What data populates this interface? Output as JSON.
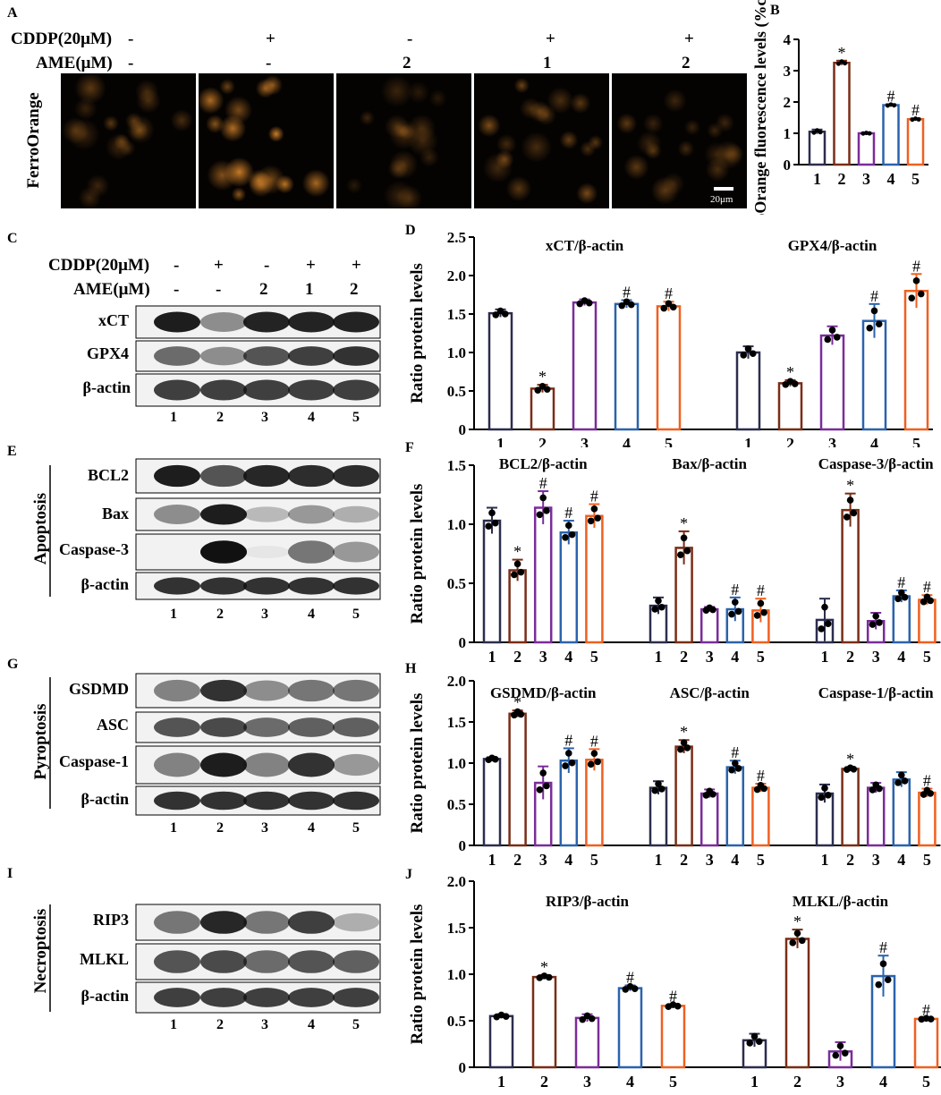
{
  "colors": {
    "lane1": "#2b2d4e",
    "lane2": "#7a2d16",
    "lane3": "#7b2c9a",
    "lane4": "#2a63ad",
    "lane5": "#ef6020",
    "dot": "#000000",
    "cell": "#e08a2c"
  },
  "panelA": {
    "label": "A",
    "cddp_label": "CDDP(20μM)",
    "ame_label": "AME(μM)",
    "cddp": [
      "-",
      "+",
      "-",
      "+",
      "+"
    ],
    "ame": [
      "-",
      "-",
      "2",
      "1",
      "2"
    ],
    "row_label": "FerroOrange",
    "scalebar": "20μm"
  },
  "panelC": {
    "label": "C",
    "cddp_label": "CDDP(20μM)",
    "ame_label": "AME(μM)",
    "cddp": [
      "-",
      "+",
      "-",
      "+",
      "+"
    ],
    "ame": [
      "-",
      "-",
      "2",
      "1",
      "2"
    ],
    "blots": [
      "xCT",
      "GPX4",
      "β-actin"
    ],
    "lanes": [
      "1",
      "2",
      "3",
      "4",
      "5"
    ]
  },
  "panelE": {
    "label": "E",
    "group": "Apoptosis",
    "blots": [
      "BCL2",
      "Bax",
      "Caspase-3",
      "β-actin"
    ],
    "lanes": [
      "1",
      "2",
      "3",
      "4",
      "5"
    ]
  },
  "panelG": {
    "label": "G",
    "group": "Pyroptosis",
    "blots": [
      "GSDMD",
      "ASC",
      "Caspase-1",
      "β-actin"
    ],
    "lanes": [
      "1",
      "2",
      "3",
      "4",
      "5"
    ]
  },
  "panelI": {
    "label": "I",
    "group": "Necroptosis",
    "blots": [
      "RIP3",
      "MLKL",
      "β-actin"
    ],
    "lanes": [
      "1",
      "2",
      "3",
      "4",
      "5"
    ]
  },
  "chart_data": [
    {
      "id": "B",
      "type": "bar",
      "panel_label": "B",
      "ylabel": "FerroOrange fluorescence levels (%control)",
      "ylim": [
        0,
        4
      ],
      "yticks": [
        0,
        1,
        2,
        3,
        4
      ],
      "categories": [
        "1",
        "2",
        "3",
        "4",
        "5"
      ],
      "groups": [
        {
          "title": "",
          "values": [
            1.05,
            3.25,
            1.0,
            1.9,
            1.45
          ],
          "errors": [
            0.07,
            0.07,
            0.02,
            0.03,
            0.03
          ],
          "marks": [
            "",
            "*",
            "",
            "#",
            "#"
          ]
        }
      ]
    },
    {
      "id": "D",
      "type": "bar",
      "panel_label": "D",
      "ylabel": "Ratio protein levels",
      "ylim": [
        0,
        2.5
      ],
      "yticks": [
        0,
        0.5,
        1.0,
        1.5,
        2.0,
        2.5
      ],
      "categories": [
        "1",
        "2",
        "3",
        "4",
        "5"
      ],
      "groups": [
        {
          "title": "xCT/β-actin",
          "values": [
            1.51,
            0.53,
            1.65,
            1.63,
            1.6
          ],
          "errors": [
            0.05,
            0.05,
            0.04,
            0.05,
            0.06
          ],
          "marks": [
            "",
            "*",
            "",
            "#",
            "#"
          ]
        },
        {
          "title": "GPX4/β-actin",
          "values": [
            1.0,
            0.6,
            1.22,
            1.41,
            1.8
          ],
          "errors": [
            0.08,
            0.04,
            0.12,
            0.22,
            0.22
          ],
          "marks": [
            "",
            "*",
            "",
            "#",
            "#"
          ]
        }
      ]
    },
    {
      "id": "F",
      "type": "bar",
      "panel_label": "F",
      "ylabel": "Ratio protein levels",
      "ylim": [
        0,
        1.5
      ],
      "yticks": [
        0,
        0.5,
        1.0,
        1.5
      ],
      "categories": [
        "1",
        "2",
        "3",
        "4",
        "5"
      ],
      "groups": [
        {
          "title": "BCL2/β-actin",
          "values": [
            1.03,
            0.61,
            1.14,
            0.93,
            1.07
          ],
          "errors": [
            0.11,
            0.09,
            0.14,
            0.1,
            0.1
          ],
          "marks": [
            "",
            "*",
            "#",
            "#",
            "#"
          ]
        },
        {
          "title": "Bax/β-actin",
          "values": [
            0.31,
            0.8,
            0.28,
            0.28,
            0.27
          ],
          "errors": [
            0.07,
            0.14,
            0.02,
            0.1,
            0.1
          ],
          "marks": [
            "",
            "*",
            "",
            "#",
            "#"
          ]
        },
        {
          "title": "Caspase-3/β-actin",
          "values": [
            0.19,
            1.12,
            0.18,
            0.39,
            0.36
          ],
          "errors": [
            0.18,
            0.14,
            0.07,
            0.05,
            0.04
          ],
          "marks": [
            "",
            "*",
            "",
            "#",
            "#"
          ]
        }
      ]
    },
    {
      "id": "H",
      "type": "bar",
      "panel_label": "H",
      "ylabel": "Ratio protein levels",
      "ylim": [
        0,
        2.0
      ],
      "yticks": [
        0,
        0.5,
        1.0,
        1.5,
        2.0
      ],
      "categories": [
        "1",
        "2",
        "3",
        "4",
        "5"
      ],
      "groups": [
        {
          "title": "GSDMD/β-actin",
          "values": [
            1.05,
            1.6,
            0.76,
            1.03,
            1.04
          ],
          "errors": [
            0.02,
            0.04,
            0.2,
            0.15,
            0.13
          ],
          "marks": [
            "",
            "*",
            "",
            "#",
            "#"
          ]
        },
        {
          "title": "ASC/β-actin",
          "values": [
            0.7,
            1.2,
            0.63,
            0.95,
            0.7
          ],
          "errors": [
            0.08,
            0.08,
            0.05,
            0.08,
            0.05
          ],
          "marks": [
            "",
            "*",
            "",
            "#",
            "#"
          ]
        },
        {
          "title": "Caspase-1/β-actin",
          "values": [
            0.63,
            0.93,
            0.7,
            0.8,
            0.64
          ],
          "errors": [
            0.11,
            0.02,
            0.06,
            0.09,
            0.05
          ],
          "marks": [
            "",
            "*",
            "",
            "",
            "#"
          ]
        }
      ]
    },
    {
      "id": "J",
      "type": "bar",
      "panel_label": "J",
      "ylabel": "Ratio protein levels",
      "ylim": [
        0,
        2.0
      ],
      "yticks": [
        0,
        0.5,
        1.0,
        1.5,
        2.0
      ],
      "categories": [
        "1",
        "2",
        "3",
        "4",
        "5"
      ],
      "groups": [
        {
          "title": "RIP3/β-actin",
          "values": [
            0.55,
            0.97,
            0.53,
            0.85,
            0.66
          ],
          "errors": [
            0.02,
            0.02,
            0.04,
            0.03,
            0.02
          ],
          "marks": [
            "",
            "*",
            "",
            "#",
            "#"
          ]
        },
        {
          "title": "MLKL/β-actin",
          "values": [
            0.29,
            1.38,
            0.17,
            0.98,
            0.52
          ],
          "errors": [
            0.07,
            0.1,
            0.1,
            0.22,
            0.01
          ],
          "marks": [
            "",
            "*",
            "",
            "#",
            "#"
          ]
        }
      ]
    }
  ]
}
